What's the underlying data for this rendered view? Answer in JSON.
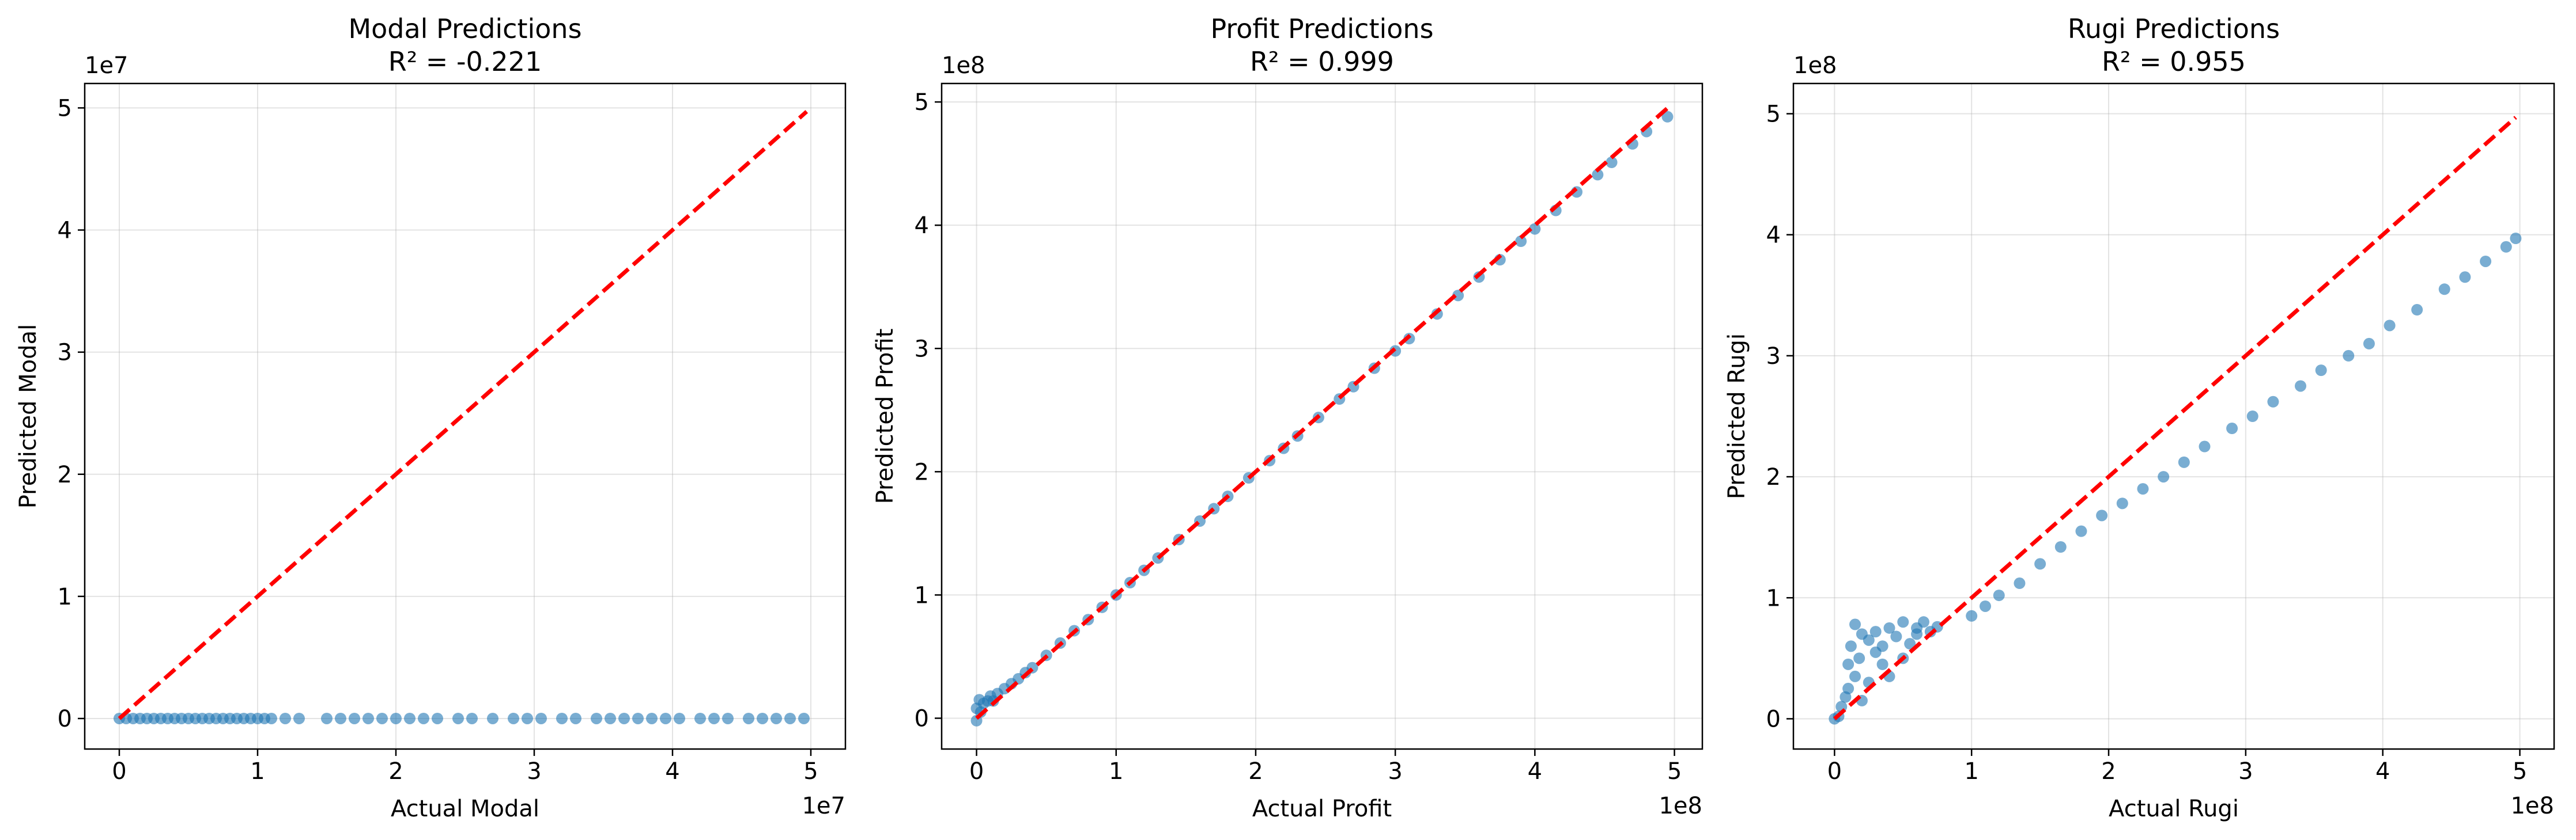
{
  "chart_data": [
    {
      "type": "scatter",
      "title": "Modal Predictions",
      "subtitle": "R² = -0.221",
      "xlabel": "Actual Modal",
      "ylabel": "Predicted Modal",
      "x_offset_text": "1e7",
      "y_offset_text": "1e7",
      "xlim": [
        -0.25,
        5.25
      ],
      "ylim": [
        -0.25,
        5.2
      ],
      "xticks": [
        0,
        1,
        2,
        3,
        4,
        5
      ],
      "xtick_labels": [
        "0",
        "1",
        "2",
        "3",
        "4",
        "5"
      ],
      "yticks": [
        0,
        1,
        2,
        3,
        4,
        5
      ],
      "ytick_labels": [
        "0",
        "1",
        "2",
        "3",
        "4",
        "5"
      ],
      "grid": true,
      "reference_line": {
        "x": [
          0,
          4.97
        ],
        "y": [
          0,
          4.97
        ],
        "color": "#ff0000",
        "style": "dashed"
      },
      "series": [
        {
          "color": "#1f77b4",
          "x": [
            0.0,
            0.05,
            0.1,
            0.15,
            0.2,
            0.25,
            0.3,
            0.35,
            0.4,
            0.45,
            0.5,
            0.55,
            0.6,
            0.65,
            0.7,
            0.75,
            0.8,
            0.85,
            0.9,
            0.95,
            1.0,
            1.05,
            1.1,
            1.2,
            1.3,
            1.5,
            1.6,
            1.7,
            1.8,
            1.9,
            2.0,
            2.1,
            2.2,
            2.3,
            2.45,
            2.55,
            2.7,
            2.85,
            2.95,
            3.05,
            3.2,
            3.3,
            3.45,
            3.55,
            3.65,
            3.75,
            3.85,
            3.95,
            4.05,
            4.2,
            4.3,
            4.4,
            4.55,
            4.65,
            4.75,
            4.85,
            4.95
          ],
          "y": [
            0.0,
            0.0,
            0.0,
            0.0,
            0.0,
            0.0,
            0.0,
            0.0,
            0.0,
            0.0,
            0.0,
            0.0,
            0.0,
            0.0,
            0.0,
            0.0,
            0.0,
            0.0,
            0.0,
            0.0,
            0.0,
            0.0,
            0.0,
            0.0,
            0.0,
            0.0,
            0.0,
            0.0,
            0.0,
            0.0,
            0.0,
            0.0,
            0.0,
            0.0,
            0.0,
            0.0,
            0.0,
            0.0,
            0.0,
            0.0,
            0.0,
            0.0,
            0.0,
            0.0,
            0.0,
            0.0,
            0.0,
            0.0,
            0.0,
            0.0,
            0.0,
            0.0,
            0.0,
            0.0,
            0.0,
            0.0,
            0.0
          ]
        }
      ]
    },
    {
      "type": "scatter",
      "title": "Profit Predictions",
      "subtitle": "R² = 0.999",
      "xlabel": "Actual Profit",
      "ylabel": "Predicted Profit",
      "x_offset_text": "1e8",
      "y_offset_text": "1e8",
      "xlim": [
        -0.25,
        5.2
      ],
      "ylim": [
        -0.25,
        5.15
      ],
      "xticks": [
        0,
        1,
        2,
        3,
        4,
        5
      ],
      "xtick_labels": [
        "0",
        "1",
        "2",
        "3",
        "4",
        "5"
      ],
      "yticks": [
        0,
        1,
        2,
        3,
        4,
        5
      ],
      "ytick_labels": [
        "0",
        "1",
        "2",
        "3",
        "4",
        "5"
      ],
      "grid": true,
      "reference_line": {
        "x": [
          0,
          4.97
        ],
        "y": [
          0,
          4.97
        ],
        "color": "#ff0000",
        "style": "dashed"
      },
      "series": [
        {
          "color": "#1f77b4",
          "x": [
            0.0,
            0.0,
            0.02,
            0.03,
            0.05,
            0.08,
            0.1,
            0.12,
            0.15,
            0.2,
            0.25,
            0.3,
            0.35,
            0.4,
            0.5,
            0.6,
            0.7,
            0.8,
            0.9,
            1.0,
            1.1,
            1.2,
            1.3,
            1.45,
            1.6,
            1.7,
            1.8,
            1.95,
            2.1,
            2.2,
            2.3,
            2.45,
            2.6,
            2.7,
            2.85,
            3.0,
            3.1,
            3.3,
            3.45,
            3.6,
            3.75,
            3.9,
            4.0,
            4.15,
            4.3,
            4.45,
            4.55,
            4.7,
            4.8,
            4.95
          ],
          "y": [
            -0.02,
            0.08,
            0.15,
            0.05,
            0.12,
            0.14,
            0.18,
            0.14,
            0.2,
            0.24,
            0.28,
            0.32,
            0.37,
            0.41,
            0.51,
            0.61,
            0.71,
            0.8,
            0.9,
            1.0,
            1.1,
            1.2,
            1.3,
            1.45,
            1.6,
            1.7,
            1.8,
            1.95,
            2.09,
            2.19,
            2.29,
            2.44,
            2.59,
            2.69,
            2.84,
            2.98,
            3.08,
            3.28,
            3.43,
            3.58,
            3.72,
            3.87,
            3.97,
            4.12,
            4.27,
            4.41,
            4.51,
            4.66,
            4.76,
            4.88
          ]
        }
      ]
    },
    {
      "type": "scatter",
      "title": "Rugi Predictions",
      "subtitle": "R² = 0.955",
      "xlabel": "Actual Rugi",
      "ylabel": "Predicted Rugi",
      "x_offset_text": "1e8",
      "y_offset_text": "1e8",
      "xlim": [
        -0.3,
        5.25
      ],
      "ylim": [
        -0.25,
        5.25
      ],
      "xticks": [
        0,
        1,
        2,
        3,
        4,
        5
      ],
      "xtick_labels": [
        "0",
        "1",
        "2",
        "3",
        "4",
        "5"
      ],
      "yticks": [
        0,
        1,
        2,
        3,
        4,
        5
      ],
      "ytick_labels": [
        "0",
        "1",
        "2",
        "3",
        "4",
        "5"
      ],
      "grid": true,
      "reference_line": {
        "x": [
          0,
          4.97
        ],
        "y": [
          0,
          4.97
        ],
        "color": "#ff0000",
        "style": "dashed"
      },
      "series": [
        {
          "color": "#1f77b4",
          "x": [
            0.0,
            0.03,
            0.05,
            0.08,
            0.1,
            0.1,
            0.12,
            0.15,
            0.15,
            0.18,
            0.2,
            0.2,
            0.25,
            0.25,
            0.3,
            0.3,
            0.35,
            0.35,
            0.4,
            0.4,
            0.45,
            0.5,
            0.5,
            0.55,
            0.6,
            0.6,
            0.65,
            0.7,
            0.75,
            1.0,
            1.1,
            1.2,
            1.35,
            1.5,
            1.65,
            1.8,
            1.95,
            2.1,
            2.25,
            2.4,
            2.55,
            2.7,
            2.9,
            3.05,
            3.2,
            3.4,
            3.55,
            3.75,
            3.9,
            4.05,
            4.25,
            4.45,
            4.6,
            4.75,
            4.9,
            4.97
          ],
          "y": [
            0.0,
            0.02,
            0.1,
            0.18,
            0.25,
            0.45,
            0.6,
            0.78,
            0.35,
            0.5,
            0.7,
            0.15,
            0.65,
            0.3,
            0.72,
            0.55,
            0.6,
            0.45,
            0.75,
            0.35,
            0.68,
            0.8,
            0.5,
            0.62,
            0.7,
            0.75,
            0.8,
            0.72,
            0.76,
            0.85,
            0.93,
            1.02,
            1.12,
            1.28,
            1.42,
            1.55,
            1.68,
            1.78,
            1.9,
            2.0,
            2.12,
            2.25,
            2.4,
            2.5,
            2.62,
            2.75,
            2.88,
            3.0,
            3.1,
            3.25,
            3.38,
            3.55,
            3.65,
            3.78,
            3.9,
            3.97
          ]
        }
      ]
    }
  ]
}
